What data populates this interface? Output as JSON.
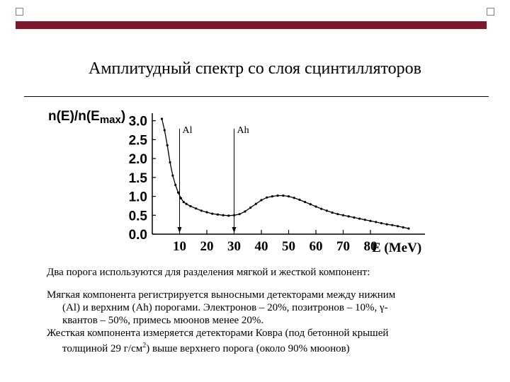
{
  "slide": {
    "title": "Амплитудный спектр со слоя сцинтилляторов",
    "decor_color": "#7a1a2c"
  },
  "chart_data": {
    "type": "line",
    "ylabel_main": "n(E)/n(E",
    "ylabel_sub": "max",
    "ylabel_close": ")",
    "xlabel": "E (MeV)",
    "x_ticks": [
      "10",
      "20",
      "30",
      "40",
      "50",
      "60",
      "70",
      "80"
    ],
    "y_ticks": [
      "0.0",
      "0.5",
      "1.0",
      "1.5",
      "2.0",
      "2.5",
      "3.0"
    ],
    "xlim": [
      0,
      100
    ],
    "ylim": [
      0,
      3.2
    ],
    "grid": false,
    "series": [
      {
        "x": [
          3.5,
          4.5,
          5.5,
          6.5,
          7.5,
          8.5,
          9.5,
          10.5,
          11.5,
          12.5,
          14,
          16,
          18,
          20,
          22,
          24,
          26,
          28,
          30,
          32,
          34,
          36,
          38,
          40,
          42,
          44,
          46,
          48,
          50,
          52,
          54,
          56,
          58,
          60,
          62,
          64,
          66,
          68,
          70,
          72,
          74,
          76,
          78,
          80,
          82,
          84,
          86,
          88,
          90,
          92,
          94
        ],
        "y": [
          3.05,
          2.75,
          2.35,
          1.9,
          1.55,
          1.3,
          1.1,
          0.95,
          0.85,
          0.8,
          0.74,
          0.68,
          0.62,
          0.58,
          0.54,
          0.52,
          0.5,
          0.49,
          0.5,
          0.53,
          0.6,
          0.7,
          0.8,
          0.9,
          0.97,
          1.0,
          1.02,
          1.02,
          1.0,
          0.96,
          0.91,
          0.85,
          0.79,
          0.73,
          0.67,
          0.62,
          0.57,
          0.53,
          0.5,
          0.47,
          0.44,
          0.41,
          0.38,
          0.35,
          0.32,
          0.29,
          0.26,
          0.24,
          0.21,
          0.18,
          0.15
        ]
      }
    ],
    "thresholds": [
      {
        "label": "Al",
        "x": 10
      },
      {
        "label": "Ah",
        "x": 30
      }
    ]
  },
  "text": {
    "p1": "Два порога используются для разделения мягкой и жесткой компонент:",
    "p2_line1": "Мягкая компонента регистрируется выносными детекторами между нижним",
    "p2_line2": "(Al) и верхним (Ah) порогами. Электронов – 20%, позитронов – 10%, γ-",
    "p2_line3": "квантов – 50%, примесь мюонов менее 20%.",
    "p3_line1": "Жесткая компонента измеряется детекторами Ковра (под бетонной крышей",
    "p3_line2_pre": "толщиной 29 г/см",
    "p3_line2_sup": "2",
    "p3_line2_post": ") выше верхнего порога (около 90% мюонов)"
  }
}
